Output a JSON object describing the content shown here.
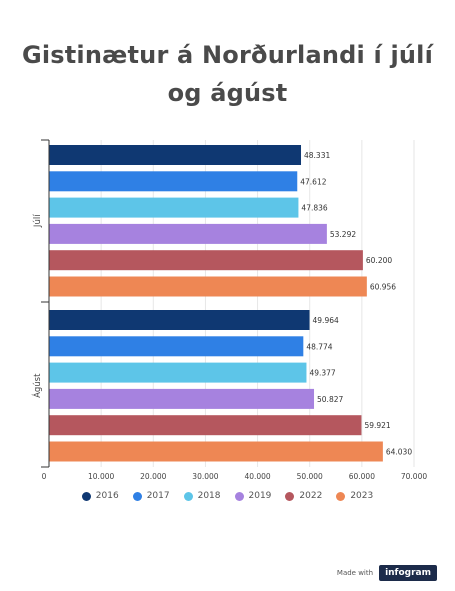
{
  "title_line1": "Gistinætur á Norðurlandi í júlí",
  "title_line2": "og ágúst",
  "footer": {
    "made_with": "Made with",
    "brand": "infogram"
  },
  "chart_data": {
    "type": "bar",
    "orientation": "horizontal",
    "categories": [
      "Júlí",
      "Ágúst"
    ],
    "series": [
      {
        "name": "2016",
        "color": "#0f3872",
        "values": [
          48331,
          49964
        ],
        "labels": [
          "48.331",
          "49.964"
        ]
      },
      {
        "name": "2017",
        "color": "#2f80e5",
        "values": [
          47612,
          48774
        ],
        "labels": [
          "47.612",
          "48.774"
        ]
      },
      {
        "name": "2018",
        "color": "#5dc5e8",
        "values": [
          47836,
          49377
        ],
        "labels": [
          "47.836",
          "49.377"
        ]
      },
      {
        "name": "2019",
        "color": "#a682df",
        "values": [
          53292,
          50827
        ],
        "labels": [
          "53.292",
          "50.827"
        ]
      },
      {
        "name": "2022",
        "color": "#b5575e",
        "values": [
          60200,
          59921
        ],
        "labels": [
          "60.200",
          "59.921"
        ]
      },
      {
        "name": "2023",
        "color": "#ee8754",
        "values": [
          60956,
          64030
        ],
        "labels": [
          "60.956",
          "64.030"
        ]
      }
    ],
    "xlim": [
      0,
      70000
    ],
    "xticks": [
      0,
      10000,
      20000,
      30000,
      40000,
      50000,
      60000,
      70000
    ],
    "xtick_labels": [
      "0",
      "10.000",
      "20.000",
      "30.000",
      "40.000",
      "50.000",
      "60.000",
      "70.000"
    ],
    "grid": true,
    "legend_position": "bottom"
  }
}
